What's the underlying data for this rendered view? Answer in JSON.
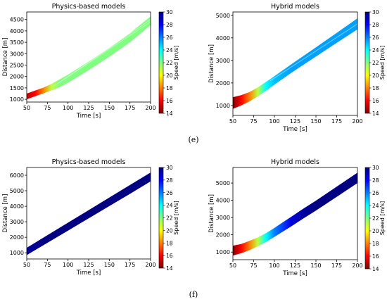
{
  "panel_labels": [
    "(e)",
    "(f)"
  ],
  "colorbar": {
    "label": "Speed [m/s]",
    "ticks": [
      14,
      16,
      18,
      20,
      22,
      24,
      26,
      28,
      30
    ],
    "range": [
      14,
      30
    ],
    "colormap": "jet",
    "colors": [
      "#800000",
      "#ff0000",
      "#ff8000",
      "#ffff00",
      "#80ff80",
      "#00ffff",
      "#0080ff",
      "#0000ff",
      "#000080"
    ]
  },
  "chart_data": [
    {
      "type": "line",
      "title": "Physics-based models",
      "xlabel": "Time [s]",
      "ylabel": "Distance [m]",
      "xlim": [
        50,
        200
      ],
      "ylim": [
        880,
        4830
      ],
      "xticks": [
        50,
        75,
        100,
        125,
        150,
        175,
        200
      ],
      "yticks": [
        1000,
        1500,
        2000,
        2500,
        3000,
        3500,
        4000,
        4500
      ],
      "band": {
        "t": [
          50,
          60,
          70,
          80,
          90,
          100,
          120,
          150,
          175,
          200
        ],
        "lower": [
          1000,
          1130,
          1260,
          1390,
          1530,
          1730,
          2160,
          2860,
          3500,
          4250
        ],
        "upper": [
          1250,
          1380,
          1510,
          1680,
          1880,
          2080,
          2540,
          3250,
          3900,
          4640
        ],
        "speed": [
          15,
          16,
          18,
          21,
          22,
          22,
          22,
          22,
          22,
          22
        ]
      },
      "inner_lines": [
        {
          "t": [
            82,
            200
          ],
          "y": [
            1560,
            4400
          ]
        },
        {
          "t": [
            88,
            200
          ],
          "y": [
            1700,
            4500
          ]
        }
      ]
    },
    {
      "type": "line",
      "title": "Hybrid models",
      "xlabel": "Time [s]",
      "ylabel": "Distance [m]",
      "xlim": [
        50,
        200
      ],
      "ylim": [
        560,
        5150
      ],
      "xticks": [
        50,
        75,
        100,
        125,
        150,
        175,
        200
      ],
      "yticks": [
        1000,
        2000,
        3000,
        4000,
        5000
      ],
      "band": {
        "t": [
          50,
          60,
          70,
          80,
          90,
          100,
          120,
          150,
          175,
          200
        ],
        "lower": [
          850,
          1000,
          1180,
          1400,
          1660,
          1920,
          2440,
          3170,
          3780,
          4380
        ],
        "upper": [
          1370,
          1460,
          1600,
          1800,
          2050,
          2300,
          2820,
          3580,
          4220,
          4870
        ],
        "speed": [
          14,
          16,
          18,
          21,
          24,
          25,
          25.5,
          25.5,
          25.5,
          25.5
        ]
      },
      "inner_lines": [
        {
          "t": [
            95,
            200
          ],
          "y": [
            2100,
            4620
          ]
        }
      ]
    },
    {
      "type": "line",
      "title": "Physics-based models",
      "xlabel": "Time [s]",
      "ylabel": "Distance [m]",
      "xlim": [
        50,
        200
      ],
      "ylim": [
        600,
        6500
      ],
      "xticks": [
        50,
        75,
        100,
        125,
        150,
        175,
        200
      ],
      "yticks": [
        1000,
        2000,
        3000,
        4000,
        5000,
        6000
      ],
      "band": {
        "t": [
          50,
          75,
          100,
          125,
          150,
          175,
          200
        ],
        "lower": [
          850,
          1640,
          2430,
          3220,
          4010,
          4800,
          5600
        ],
        "upper": [
          1320,
          2130,
          2940,
          3750,
          4560,
          5370,
          6180
        ],
        "speed": [
          29.5,
          30,
          30,
          30,
          30,
          30,
          30
        ]
      },
      "inner_lines": []
    },
    {
      "type": "line",
      "title": "Hybrid models",
      "xlabel": "Time [s]",
      "ylabel": "Distance [m]",
      "xlim": [
        50,
        200
      ],
      "ylim": [
        560,
        5900
      ],
      "xticks": [
        50,
        75,
        100,
        125,
        150,
        175,
        200
      ],
      "yticks": [
        1000,
        2000,
        3000,
        4000,
        5000
      ],
      "band": {
        "t": [
          50,
          60,
          70,
          80,
          90,
          100,
          110,
          120,
          135,
          150,
          175,
          200
        ],
        "lower": [
          800,
          930,
          1110,
          1330,
          1590,
          1880,
          2180,
          2480,
          2950,
          3400,
          4200,
          5000
        ],
        "upper": [
          1370,
          1470,
          1650,
          1850,
          2100,
          2400,
          2720,
          3040,
          3520,
          3980,
          4790,
          5600
        ],
        "speed": [
          14,
          16,
          18,
          21,
          24,
          26,
          27,
          28.5,
          29.5,
          30,
          30,
          30
        ]
      },
      "inner_lines": []
    }
  ]
}
